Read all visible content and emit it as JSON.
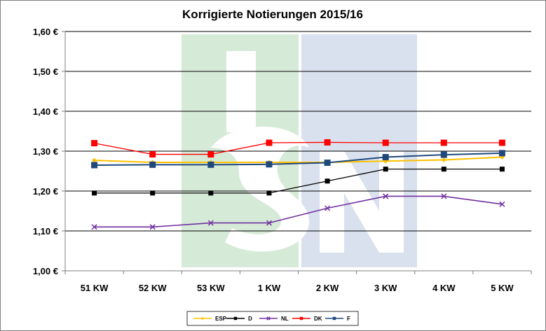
{
  "chart_data": {
    "type": "line",
    "title": "Korrigierte Notierungen 2015/16",
    "xlabel": "",
    "ylabel": "",
    "categories": [
      "51 KW",
      "52 KW",
      "53 KW",
      "1 KW",
      "2 KW",
      "3 KW",
      "4 KW",
      "5 KW"
    ],
    "ylim": [
      1.0,
      1.6
    ],
    "yticks": [
      1.0,
      1.1,
      1.2,
      1.3,
      1.4,
      1.5,
      1.6
    ],
    "ytick_labels": [
      "1,00 €",
      "1,10 €",
      "1,20 €",
      "1,30 €",
      "1,40 €",
      "1,50 €",
      "1,60 €"
    ],
    "grid": "horizontal",
    "legend_position": "bottom",
    "series": [
      {
        "name": "ESP",
        "color": "#ffc000",
        "marker": "diamond",
        "values": [
          1.277,
          1.272,
          1.272,
          1.272,
          1.272,
          1.275,
          1.278,
          1.285
        ]
      },
      {
        "name": "D",
        "color": "#000000",
        "marker": "square",
        "values": [
          1.195,
          1.195,
          1.195,
          1.195,
          1.225,
          1.255,
          1.255,
          1.255
        ]
      },
      {
        "name": "NL",
        "color": "#7030a0",
        "marker": "x",
        "values": [
          1.11,
          1.11,
          1.12,
          1.12,
          1.157,
          1.187,
          1.187,
          1.167
        ]
      },
      {
        "name": "DK",
        "color": "#ff0000",
        "marker": "square",
        "values": [
          1.32,
          1.292,
          1.292,
          1.321,
          1.322,
          1.321,
          1.321,
          1.321
        ]
      },
      {
        "name": "F",
        "color": "#1f497d",
        "marker": "square",
        "values": [
          1.265,
          1.266,
          1.266,
          1.267,
          1.271,
          1.285,
          1.291,
          1.295
        ]
      }
    ]
  },
  "watermark": {
    "text": "ISN",
    "colors": [
      "#d6ead8",
      "#d9e1ee"
    ]
  },
  "colors": {
    "gridline": "#000000",
    "axis": "#7f7f7f",
    "frame": "#7f7f7f"
  }
}
